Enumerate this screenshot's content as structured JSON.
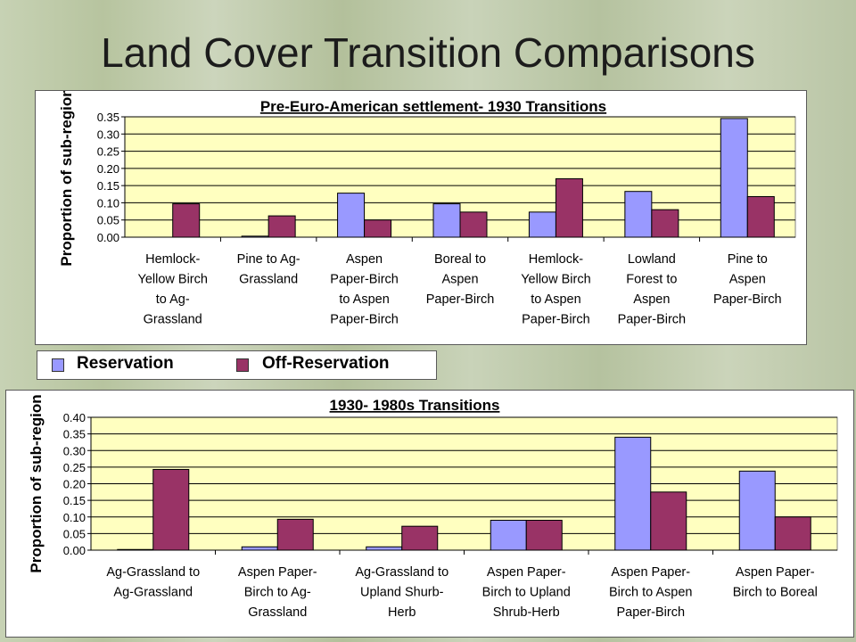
{
  "page": {
    "title": "Land Cover Transition Comparisons"
  },
  "legend": {
    "items": [
      {
        "label": "Reservation",
        "color": "#9999ff"
      },
      {
        "label": "Off-Reservation",
        "color": "#993366"
      }
    ]
  },
  "chart_data": [
    {
      "type": "bar",
      "title": "Pre-Euro-American settlement- 1930 Transitions",
      "ylabel": "Proportion of sub-region",
      "xlabel": "",
      "ylim": [
        0,
        0.35
      ],
      "yticks": [
        "0.00",
        "0.05",
        "0.10",
        "0.15",
        "0.20",
        "0.25",
        "0.30",
        "0.35"
      ],
      "ytick_values": [
        0,
        0.05,
        0.1,
        0.15,
        0.2,
        0.25,
        0.3,
        0.35
      ],
      "grid": true,
      "categories": [
        [
          "Hemlock-",
          "Yellow Birch",
          "to Ag-",
          "Grassland"
        ],
        [
          "Pine to Ag-",
          "Grassland"
        ],
        [
          "Aspen",
          "Paper-Birch",
          "to Aspen",
          "Paper-Birch"
        ],
        [
          "Boreal to",
          "Aspen",
          "Paper-Birch"
        ],
        [
          "Hemlock-",
          "Yellow Birch",
          "to Aspen",
          "Paper-Birch"
        ],
        [
          "Lowland",
          "Forest to",
          "Aspen",
          "Paper-Birch"
        ],
        [
          "Pine to",
          "Aspen",
          "Paper-Birch"
        ]
      ],
      "series": [
        {
          "name": "Reservation",
          "color": "#9999ff",
          "values": [
            0.0,
            0.003,
            0.128,
            0.097,
            0.073,
            0.133,
            0.345
          ]
        },
        {
          "name": "Off-Reservation",
          "color": "#993366",
          "values": [
            0.097,
            0.062,
            0.05,
            0.073,
            0.17,
            0.08,
            0.118
          ]
        }
      ]
    },
    {
      "type": "bar",
      "title": "1930- 1980s Transitions",
      "ylabel": "Proportion of sub-region",
      "xlabel": "",
      "ylim": [
        0,
        0.4
      ],
      "yticks": [
        "0.00",
        "0.05",
        "0.10",
        "0.15",
        "0.20",
        "0.25",
        "0.30",
        "0.35",
        "0.40"
      ],
      "ytick_values": [
        0,
        0.05,
        0.1,
        0.15,
        0.2,
        0.25,
        0.3,
        0.35,
        0.4
      ],
      "grid": true,
      "categories": [
        [
          "Ag-Grassland to",
          "Ag-Grassland"
        ],
        [
          "Aspen Paper-",
          "Birch to Ag-",
          "Grassland"
        ],
        [
          "Ag-Grassland to",
          "Upland Shurb-",
          "Herb"
        ],
        [
          "Aspen Paper-",
          "Birch to Upland",
          "Shrub-Herb"
        ],
        [
          "Aspen Paper-",
          "Birch to Aspen",
          "Paper-Birch"
        ],
        [
          "Aspen Paper-",
          "Birch to Boreal"
        ]
      ],
      "series": [
        {
          "name": "Reservation",
          "color": "#9999ff",
          "values": [
            0.002,
            0.01,
            0.01,
            0.09,
            0.34,
            0.238
          ]
        },
        {
          "name": "Off-Reservation",
          "color": "#993366",
          "values": [
            0.243,
            0.093,
            0.072,
            0.09,
            0.175,
            0.1
          ]
        }
      ]
    }
  ]
}
